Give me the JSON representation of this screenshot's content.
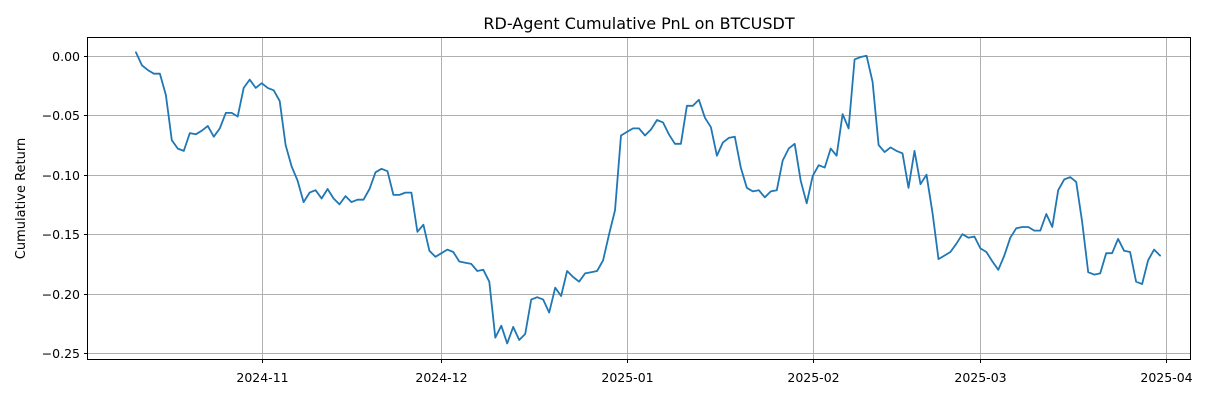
{
  "chart_data": {
    "type": "line",
    "title": "RD-Agent Cumulative PnL on BTCUSDT",
    "xlabel": "",
    "ylabel": "Cumulative Return",
    "x_axis_type": "date",
    "xlim": [
      "2024-10-03",
      "2025-04-05"
    ],
    "ylim": [
      -0.255,
      0.015
    ],
    "xticks": [
      {
        "date": "2024-11-01",
        "label": "2024-11"
      },
      {
        "date": "2024-12-01",
        "label": "2024-12"
      },
      {
        "date": "2025-01-01",
        "label": "2025-01"
      },
      {
        "date": "2025-02-01",
        "label": "2025-02"
      },
      {
        "date": "2025-03-01",
        "label": "2025-03"
      },
      {
        "date": "2025-04-01",
        "label": "2025-04"
      }
    ],
    "yticks": [
      {
        "value": 0.0,
        "label": "0.00"
      },
      {
        "value": -0.05,
        "label": "−0.05"
      },
      {
        "value": -0.1,
        "label": "−0.10"
      },
      {
        "value": -0.15,
        "label": "−0.15"
      },
      {
        "value": -0.2,
        "label": "−0.20"
      },
      {
        "value": -0.25,
        "label": "−0.25"
      }
    ],
    "grid": true,
    "legend": "none",
    "series": [
      {
        "color": "#1f77b4",
        "points": [
          [
            "2024-10-11",
            0.003
          ],
          [
            "2024-10-12",
            -0.008
          ],
          [
            "2024-10-13",
            -0.012
          ],
          [
            "2024-10-14",
            -0.015
          ],
          [
            "2024-10-15",
            -0.015
          ],
          [
            "2024-10-16",
            -0.033
          ],
          [
            "2024-10-17",
            -0.071
          ],
          [
            "2024-10-18",
            -0.078
          ],
          [
            "2024-10-19",
            -0.08
          ],
          [
            "2024-10-20",
            -0.065
          ],
          [
            "2024-10-21",
            -0.066
          ],
          [
            "2024-10-22",
            -0.063
          ],
          [
            "2024-10-23",
            -0.059
          ],
          [
            "2024-10-24",
            -0.068
          ],
          [
            "2024-10-25",
            -0.061
          ],
          [
            "2024-10-26",
            -0.048
          ],
          [
            "2024-10-27",
            -0.048
          ],
          [
            "2024-10-28",
            -0.051
          ],
          [
            "2024-10-29",
            -0.027
          ],
          [
            "2024-10-30",
            -0.02
          ],
          [
            "2024-10-31",
            -0.027
          ],
          [
            "2024-11-01",
            -0.023
          ],
          [
            "2024-11-02",
            -0.027
          ],
          [
            "2024-11-03",
            -0.029
          ],
          [
            "2024-11-04",
            -0.038
          ],
          [
            "2024-11-05",
            -0.075
          ],
          [
            "2024-11-06",
            -0.093
          ],
          [
            "2024-11-07",
            -0.105
          ],
          [
            "2024-11-08",
            -0.123
          ],
          [
            "2024-11-09",
            -0.115
          ],
          [
            "2024-11-10",
            -0.113
          ],
          [
            "2024-11-11",
            -0.12
          ],
          [
            "2024-11-12",
            -0.112
          ],
          [
            "2024-11-13",
            -0.12
          ],
          [
            "2024-11-14",
            -0.125
          ],
          [
            "2024-11-15",
            -0.118
          ],
          [
            "2024-11-16",
            -0.123
          ],
          [
            "2024-11-17",
            -0.121
          ],
          [
            "2024-11-18",
            -0.121
          ],
          [
            "2024-11-19",
            -0.112
          ],
          [
            "2024-11-20",
            -0.098
          ],
          [
            "2024-11-21",
            -0.095
          ],
          [
            "2024-11-22",
            -0.097
          ],
          [
            "2024-11-23",
            -0.117
          ],
          [
            "2024-11-24",
            -0.117
          ],
          [
            "2024-11-25",
            -0.115
          ],
          [
            "2024-11-26",
            -0.115
          ],
          [
            "2024-11-27",
            -0.148
          ],
          [
            "2024-11-28",
            -0.142
          ],
          [
            "2024-11-29",
            -0.164
          ],
          [
            "2024-11-30",
            -0.169
          ],
          [
            "2024-12-01",
            -0.166
          ],
          [
            "2024-12-02",
            -0.163
          ],
          [
            "2024-12-03",
            -0.165
          ],
          [
            "2024-12-04",
            -0.173
          ],
          [
            "2024-12-05",
            -0.174
          ],
          [
            "2024-12-06",
            -0.175
          ],
          [
            "2024-12-07",
            -0.181
          ],
          [
            "2024-12-08",
            -0.18
          ],
          [
            "2024-12-09",
            -0.19
          ],
          [
            "2024-12-10",
            -0.237
          ],
          [
            "2024-12-11",
            -0.227
          ],
          [
            "2024-12-12",
            -0.242
          ],
          [
            "2024-12-13",
            -0.228
          ],
          [
            "2024-12-14",
            -0.239
          ],
          [
            "2024-12-15",
            -0.234
          ],
          [
            "2024-12-16",
            -0.205
          ],
          [
            "2024-12-17",
            -0.203
          ],
          [
            "2024-12-18",
            -0.205
          ],
          [
            "2024-12-19",
            -0.216
          ],
          [
            "2024-12-20",
            -0.195
          ],
          [
            "2024-12-21",
            -0.202
          ],
          [
            "2024-12-22",
            -0.181
          ],
          [
            "2024-12-23",
            -0.186
          ],
          [
            "2024-12-24",
            -0.19
          ],
          [
            "2024-12-25",
            -0.183
          ],
          [
            "2024-12-26",
            -0.182
          ],
          [
            "2024-12-27",
            -0.181
          ],
          [
            "2024-12-28",
            -0.172
          ],
          [
            "2024-12-29",
            -0.15
          ],
          [
            "2024-12-30",
            -0.13
          ],
          [
            "2024-12-31",
            -0.067
          ],
          [
            "2025-01-01",
            -0.064
          ],
          [
            "2025-01-02",
            -0.061
          ],
          [
            "2025-01-03",
            -0.061
          ],
          [
            "2025-01-04",
            -0.067
          ],
          [
            "2025-01-05",
            -0.062
          ],
          [
            "2025-01-06",
            -0.054
          ],
          [
            "2025-01-07",
            -0.056
          ],
          [
            "2025-01-08",
            -0.066
          ],
          [
            "2025-01-09",
            -0.074
          ],
          [
            "2025-01-10",
            -0.074
          ],
          [
            "2025-01-11",
            -0.042
          ],
          [
            "2025-01-12",
            -0.042
          ],
          [
            "2025-01-13",
            -0.037
          ],
          [
            "2025-01-14",
            -0.052
          ],
          [
            "2025-01-15",
            -0.06
          ],
          [
            "2025-01-16",
            -0.084
          ],
          [
            "2025-01-17",
            -0.073
          ],
          [
            "2025-01-18",
            -0.069
          ],
          [
            "2025-01-19",
            -0.068
          ],
          [
            "2025-01-20",
            -0.094
          ],
          [
            "2025-01-21",
            -0.111
          ],
          [
            "2025-01-22",
            -0.114
          ],
          [
            "2025-01-23",
            -0.113
          ],
          [
            "2025-01-24",
            -0.119
          ],
          [
            "2025-01-25",
            -0.114
          ],
          [
            "2025-01-26",
            -0.113
          ],
          [
            "2025-01-27",
            -0.088
          ],
          [
            "2025-01-28",
            -0.078
          ],
          [
            "2025-01-29",
            -0.074
          ],
          [
            "2025-01-30",
            -0.105
          ],
          [
            "2025-01-31",
            -0.124
          ],
          [
            "2025-02-01",
            -0.101
          ],
          [
            "2025-02-02",
            -0.092
          ],
          [
            "2025-02-03",
            -0.094
          ],
          [
            "2025-02-04",
            -0.078
          ],
          [
            "2025-02-05",
            -0.084
          ],
          [
            "2025-02-06",
            -0.049
          ],
          [
            "2025-02-07",
            -0.061
          ],
          [
            "2025-02-08",
            -0.003
          ],
          [
            "2025-02-09",
            -0.001
          ],
          [
            "2025-02-10",
            0.0
          ],
          [
            "2025-02-11",
            -0.022
          ],
          [
            "2025-02-12",
            -0.075
          ],
          [
            "2025-02-13",
            -0.081
          ],
          [
            "2025-02-14",
            -0.077
          ],
          [
            "2025-02-15",
            -0.08
          ],
          [
            "2025-02-16",
            -0.082
          ],
          [
            "2025-02-17",
            -0.111
          ],
          [
            "2025-02-18",
            -0.08
          ],
          [
            "2025-02-19",
            -0.108
          ],
          [
            "2025-02-20",
            -0.1
          ],
          [
            "2025-02-21",
            -0.132
          ],
          [
            "2025-02-22",
            -0.171
          ],
          [
            "2025-02-23",
            -0.168
          ],
          [
            "2025-02-24",
            -0.165
          ],
          [
            "2025-02-25",
            -0.158
          ],
          [
            "2025-02-26",
            -0.15
          ],
          [
            "2025-02-27",
            -0.153
          ],
          [
            "2025-02-28",
            -0.152
          ],
          [
            "2025-03-01",
            -0.162
          ],
          [
            "2025-03-02",
            -0.165
          ],
          [
            "2025-03-03",
            -0.173
          ],
          [
            "2025-03-04",
            -0.18
          ],
          [
            "2025-03-05",
            -0.168
          ],
          [
            "2025-03-06",
            -0.153
          ],
          [
            "2025-03-07",
            -0.145
          ],
          [
            "2025-03-08",
            -0.144
          ],
          [
            "2025-03-09",
            -0.144
          ],
          [
            "2025-03-10",
            -0.147
          ],
          [
            "2025-03-11",
            -0.147
          ],
          [
            "2025-03-12",
            -0.133
          ],
          [
            "2025-03-13",
            -0.144
          ],
          [
            "2025-03-14",
            -0.113
          ],
          [
            "2025-03-15",
            -0.104
          ],
          [
            "2025-03-16",
            -0.102
          ],
          [
            "2025-03-17",
            -0.106
          ],
          [
            "2025-03-18",
            -0.14
          ],
          [
            "2025-03-19",
            -0.182
          ],
          [
            "2025-03-20",
            -0.184
          ],
          [
            "2025-03-21",
            -0.183
          ],
          [
            "2025-03-22",
            -0.166
          ],
          [
            "2025-03-23",
            -0.166
          ],
          [
            "2025-03-24",
            -0.154
          ],
          [
            "2025-03-25",
            -0.164
          ],
          [
            "2025-03-26",
            -0.165
          ],
          [
            "2025-03-27",
            -0.19
          ],
          [
            "2025-03-28",
            -0.192
          ],
          [
            "2025-03-29",
            -0.172
          ],
          [
            "2025-03-30",
            -0.163
          ],
          [
            "2025-03-31",
            -0.168
          ]
        ]
      }
    ]
  }
}
